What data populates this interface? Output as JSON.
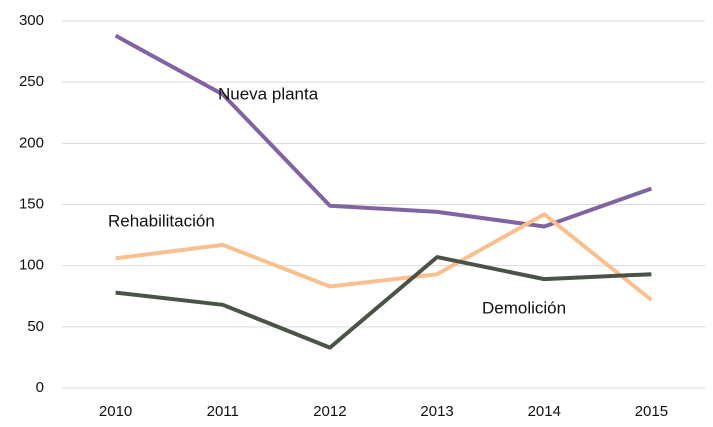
{
  "chart_data": {
    "type": "line",
    "categories": [
      "2010",
      "2011",
      "2012",
      "2013",
      "2014",
      "2015"
    ],
    "series": [
      {
        "name": "Nueva planta",
        "color": "#8064a2",
        "values": [
          288,
          240,
          149,
          144,
          132,
          163
        ]
      },
      {
        "name": "Rehabilitación",
        "color": "#f9c08f",
        "values": [
          106,
          117,
          83,
          93,
          142,
          72
        ]
      },
      {
        "name": "Demolición",
        "color": "#4a5446",
        "values": [
          78,
          68,
          33,
          107,
          89,
          93
        ]
      }
    ],
    "ylim": [
      0,
      300
    ],
    "yticks": [
      0,
      50,
      100,
      150,
      200,
      250,
      300
    ],
    "grid": true
  }
}
